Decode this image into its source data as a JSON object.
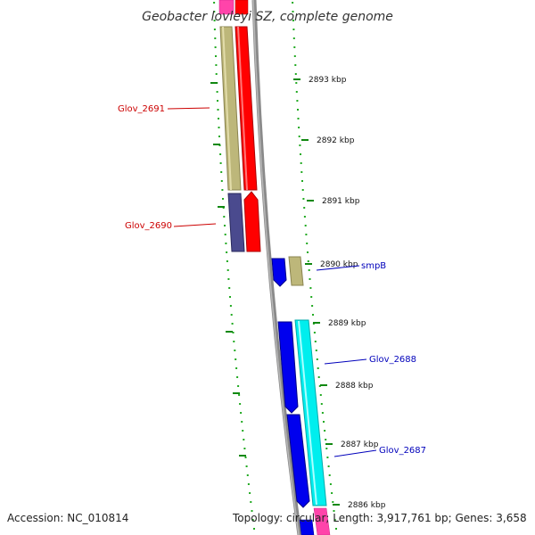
{
  "title": "Geobacter lovleyi SZ, complete genome",
  "footer": {
    "accession": "Accession: NC_010814",
    "topology": "Topology: circular; Length: 3,917,761 bp; Genes: 3,658"
  },
  "scale": {
    "unit": "kbp",
    "ticks": [
      {
        "label": "2893 kbp"
      },
      {
        "label": "2892 kbp"
      },
      {
        "label": "2891 kbp"
      },
      {
        "label": "2890 kbp"
      },
      {
        "label": "2889 kbp"
      },
      {
        "label": "2888 kbp"
      },
      {
        "label": "2887 kbp"
      },
      {
        "label": "2886 kbp"
      }
    ]
  },
  "gene_labels": [
    {
      "name": "glov-2691-label",
      "text": "Glov_2691",
      "color": "#cc0000"
    },
    {
      "name": "glov-2690-label",
      "text": "Glov_2690",
      "color": "#cc0000"
    },
    {
      "name": "smpb-label",
      "text": "smpB",
      "color": "#0000bb"
    },
    {
      "name": "glov-2688-label",
      "text": "Glov_2688",
      "color": "#0000bb"
    },
    {
      "name": "glov-2687-label",
      "text": "Glov_2687",
      "color": "#0000bb"
    }
  ],
  "colors": {
    "backbone": "#8a8a8a",
    "dots": "#22aa22",
    "tan": "#bdb77a",
    "red": "#ff0000",
    "navy": "#4a4a8e",
    "blue": "#0000ee",
    "cyan": "#00eeee",
    "pink": "#ff44aa",
    "label_red": "#cc0000",
    "label_blue": "#0000bb"
  }
}
